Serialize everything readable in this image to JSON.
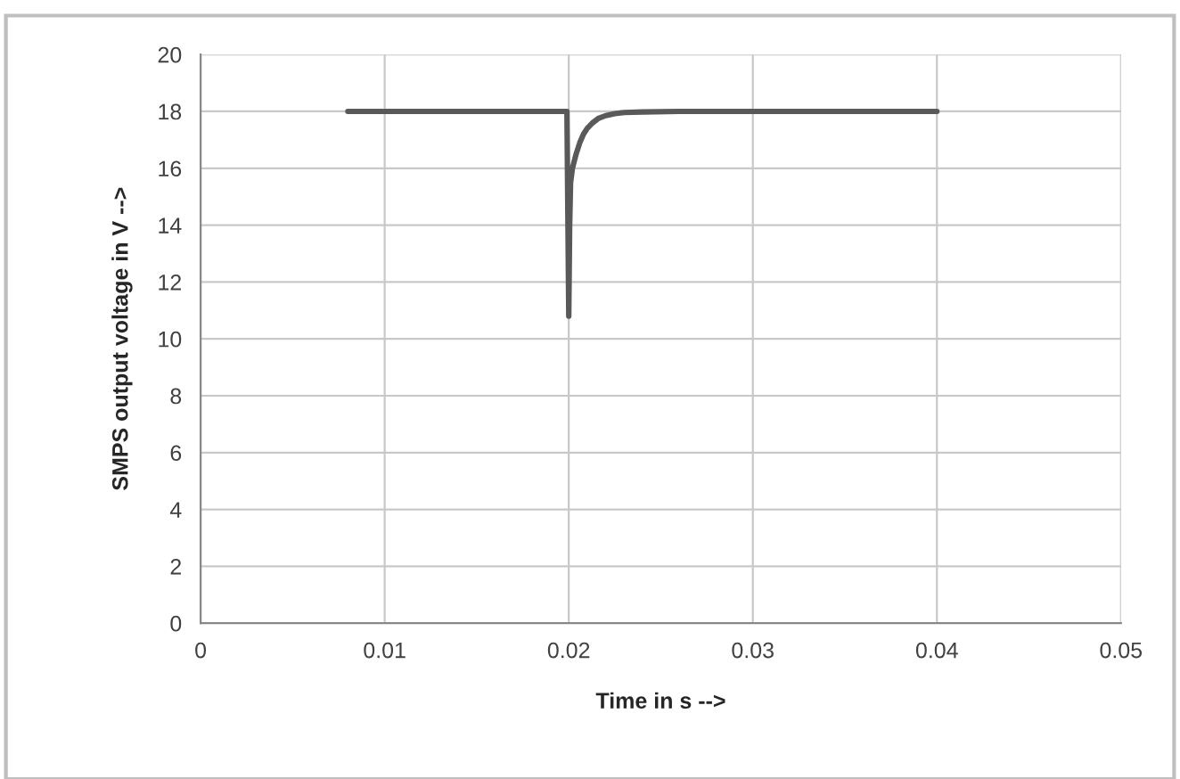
{
  "chart_data": {
    "type": "line",
    "xlabel": "Time in s -->",
    "ylabel": "SMPS output voltage in V -->",
    "series": [
      {
        "color": "#595959",
        "x": [
          0.008,
          0.012,
          0.016,
          0.0199,
          0.02,
          0.02005,
          0.0201,
          0.0202,
          0.0204,
          0.0206,
          0.0208,
          0.021,
          0.0213,
          0.0216,
          0.022,
          0.0225,
          0.023,
          0.024,
          0.026,
          0.03,
          0.035,
          0.04
        ],
        "values": [
          18,
          18,
          18,
          18,
          10.8,
          14,
          15.5,
          16.0,
          16.5,
          16.9,
          17.2,
          17.4,
          17.6,
          17.75,
          17.85,
          17.92,
          17.96,
          17.98,
          18,
          18,
          18,
          18
        ]
      }
    ],
    "xlim": [
      0,
      0.05
    ],
    "xticks": [
      {
        "value": 0,
        "label": "0"
      },
      0.01,
      0.02,
      0.03,
      0.04,
      0.05
    ],
    "ylim": [
      0,
      20
    ],
    "yticks": [
      0,
      2,
      4,
      6,
      8,
      10,
      12,
      14,
      16,
      18,
      20
    ],
    "grid": true,
    "marker": "none",
    "line_style": "solid"
  }
}
